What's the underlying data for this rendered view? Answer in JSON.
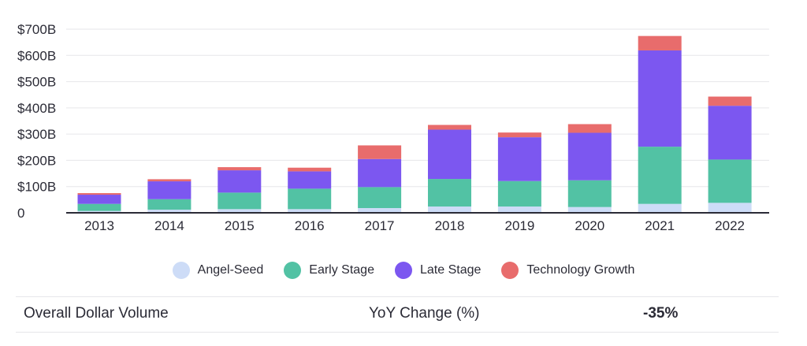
{
  "chart_data": {
    "type": "bar",
    "stacked": true,
    "categories": [
      "2013",
      "2014",
      "2015",
      "2016",
      "2017",
      "2018",
      "2019",
      "2020",
      "2021",
      "2022"
    ],
    "series": [
      {
        "name": "Angel-Seed",
        "color": "#cddcf7",
        "values": [
          7,
          12,
          14,
          14,
          18,
          24,
          24,
          22,
          34,
          38
        ]
      },
      {
        "name": "Early Stage",
        "color": "#52c2a4",
        "values": [
          27,
          40,
          63,
          78,
          80,
          105,
          97,
          102,
          218,
          165
        ]
      },
      {
        "name": "Late Stage",
        "color": "#7c57f0",
        "values": [
          35,
          68,
          85,
          66,
          107,
          188,
          167,
          181,
          367,
          205
        ]
      },
      {
        "name": "Technology Growth",
        "color": "#e86c6c",
        "values": [
          6,
          8,
          12,
          14,
          52,
          18,
          18,
          33,
          55,
          35
        ]
      }
    ],
    "y_ticks": [
      "0",
      "$100B",
      "$200B",
      "$300B",
      "$400B",
      "$500B",
      "$600B",
      "$700B"
    ],
    "ylim": [
      0,
      700
    ],
    "grid": true,
    "legend": "bottom-center",
    "title": "",
    "xlabel": "",
    "ylabel": ""
  },
  "summary": {
    "label": "Overall Dollar Volume",
    "yoy_label": "YoY Change (%)",
    "yoy_value": "-35%"
  }
}
